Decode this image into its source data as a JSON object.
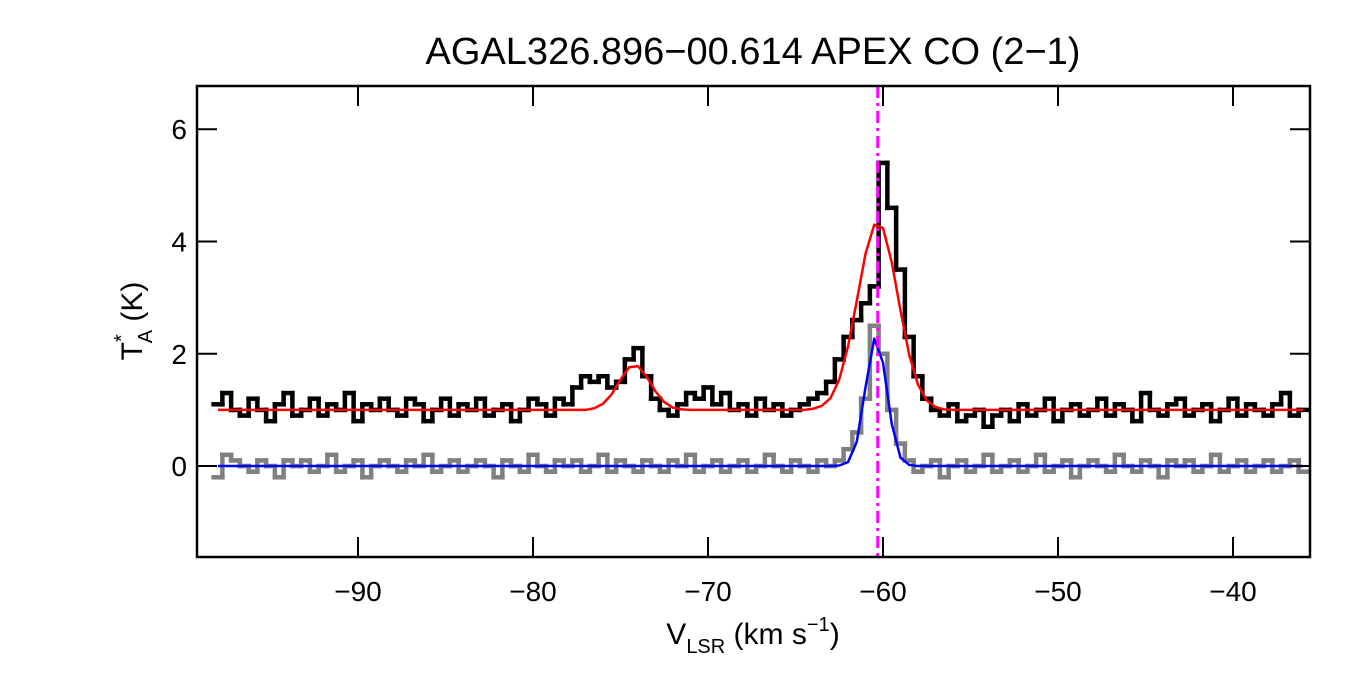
{
  "chart_data": {
    "type": "spectrum",
    "title": "AGAL326.896−00.614  APEX CO (2−1)",
    "ylabel": {
      "base": "T",
      "sup": "*",
      "sub": "A",
      "rest": " (K)"
    },
    "xlabel": {
      "base": "V",
      "sub": "LSR",
      "mid": " (km s",
      "sup": "−1",
      "rest": ")"
    },
    "xlim": [
      -99.2,
      -35.6
    ],
    "ylim": [
      -1.62,
      6.77
    ],
    "xticks": [
      {
        "value": -90,
        "label": "−90"
      },
      {
        "value": -80,
        "label": "−80"
      },
      {
        "value": -70,
        "label": "−70"
      },
      {
        "value": -60,
        "label": "−60"
      },
      {
        "value": -50,
        "label": "−50"
      },
      {
        "value": -40,
        "label": "−40"
      }
    ],
    "yticks": [
      0,
      2,
      4,
      6
    ],
    "vline": {
      "x": -60.3,
      "color": "#ff00ff"
    },
    "x": [
      -98,
      -97.5,
      -97,
      -96.5,
      -96,
      -95.5,
      -95,
      -94.5,
      -94,
      -93.5,
      -93,
      -92.5,
      -92,
      -91.5,
      -91,
      -90.5,
      -90,
      -89.5,
      -89,
      -88.5,
      -88,
      -87.5,
      -87,
      -86.5,
      -86,
      -85.5,
      -85,
      -84.5,
      -84,
      -83.5,
      -83,
      -82.5,
      -82,
      -81.5,
      -81,
      -80.5,
      -80,
      -79.5,
      -79,
      -78.5,
      -78,
      -77.5,
      -77,
      -76.5,
      -76,
      -75.5,
      -75,
      -74.5,
      -74,
      -73.5,
      -73,
      -72.5,
      -72,
      -71.5,
      -71,
      -70.5,
      -70,
      -69.5,
      -69,
      -68.5,
      -68,
      -67.5,
      -67,
      -66.5,
      -66,
      -65.5,
      -65,
      -64.5,
      -64,
      -63.5,
      -63,
      -62.5,
      -62,
      -61.5,
      -61,
      -60.5,
      -60,
      -59.5,
      -59,
      -58.5,
      -58,
      -57.5,
      -57,
      -56.5,
      -56,
      -55.5,
      -55,
      -54.5,
      -54,
      -53.5,
      -53,
      -52.5,
      -52,
      -51.5,
      -51,
      -50.5,
      -50,
      -49.5,
      -49,
      -48.5,
      -48,
      -47.5,
      -47,
      -46.5,
      -46,
      -45.5,
      -45,
      -44.5,
      -44,
      -43.5,
      -43,
      -42.5,
      -42,
      -41.5,
      -41,
      -40.5,
      -40,
      -39.5,
      -39,
      -38.5,
      -38,
      -37.5,
      -37,
      -36.5,
      -36
    ],
    "series": [
      {
        "color": "#808080",
        "style": "step",
        "values": [
          -0.2,
          0.2,
          0.1,
          0.0,
          -0.1,
          0.1,
          0.0,
          -0.2,
          0.1,
          0.0,
          0.1,
          -0.1,
          0.0,
          0.2,
          -0.1,
          0.0,
          0.1,
          -0.2,
          0.0,
          0.1,
          0.0,
          -0.1,
          0.1,
          0.0,
          0.2,
          -0.1,
          0.0,
          0.1,
          -0.1,
          0.0,
          0.1,
          0.0,
          -0.2,
          0.1,
          0.0,
          -0.1,
          0.2,
          0.0,
          -0.1,
          0.1,
          0.0,
          0.1,
          -0.1,
          0.0,
          0.2,
          -0.1,
          0.1,
          0.0,
          -0.1,
          0.1,
          0.0,
          -0.1,
          0.1,
          0.0,
          0.2,
          -0.1,
          0.0,
          0.1,
          -0.1,
          0.0,
          0.1,
          -0.1,
          0.0,
          0.2,
          0.0,
          -0.1,
          0.1,
          0.0,
          -0.1,
          0.1,
          0.0,
          0.1,
          0.3,
          0.6,
          1.2,
          2.5,
          2.0,
          1.0,
          0.4,
          0.1,
          -0.1,
          0.0,
          0.1,
          -0.2,
          0.0,
          0.1,
          -0.1,
          0.0,
          0.2,
          -0.1,
          0.0,
          0.1,
          -0.1,
          0.0,
          0.2,
          -0.1,
          0.0,
          0.1,
          -0.2,
          0.0,
          0.1,
          0.0,
          -0.1,
          0.2,
          0.0,
          -0.1,
          0.1,
          0.0,
          -0.2,
          0.1,
          0.0,
          0.1,
          -0.1,
          0.0,
          0.2,
          -0.1,
          0.0,
          0.1,
          -0.1,
          0.0,
          0.1,
          -0.1,
          0.0,
          0.1,
          -0.1
        ]
      },
      {
        "color": "#000000",
        "style": "step",
        "values": [
          1.1,
          1.3,
          1.0,
          0.9,
          1.2,
          1.0,
          0.8,
          1.1,
          1.3,
          0.9,
          1.0,
          1.2,
          0.9,
          1.1,
          1.0,
          1.3,
          0.8,
          1.1,
          1.0,
          1.2,
          1.0,
          0.9,
          1.2,
          1.1,
          0.8,
          1.0,
          1.2,
          0.9,
          1.1,
          1.0,
          1.2,
          0.9,
          1.0,
          1.1,
          0.8,
          1.0,
          1.2,
          1.1,
          0.9,
          1.2,
          1.1,
          1.4,
          1.6,
          1.5,
          1.6,
          1.4,
          1.5,
          1.9,
          2.1,
          1.6,
          1.2,
          1.0,
          0.9,
          1.1,
          1.3,
          1.2,
          1.4,
          1.1,
          1.3,
          1.0,
          1.1,
          0.9,
          1.2,
          1.0,
          1.1,
          0.9,
          1.0,
          1.1,
          1.2,
          1.3,
          1.5,
          1.9,
          2.3,
          2.6,
          2.9,
          3.2,
          5.4,
          4.6,
          3.5,
          2.3,
          1.6,
          1.2,
          1.0,
          0.9,
          1.1,
          0.8,
          0.9,
          1.0,
          0.7,
          0.9,
          1.0,
          0.8,
          1.1,
          0.9,
          1.0,
          1.2,
          0.8,
          1.0,
          1.1,
          0.9,
          1.0,
          1.2,
          0.9,
          1.1,
          1.0,
          0.8,
          1.3,
          1.0,
          0.9,
          1.1,
          1.2,
          0.9,
          1.0,
          1.1,
          0.8,
          1.0,
          1.2,
          0.9,
          1.1,
          1.0,
          0.9,
          1.1,
          1.3,
          0.9,
          1.0
        ]
      },
      {
        "color": "#ff0000",
        "style": "line",
        "values": [
          1.0,
          1.0,
          1.0,
          1.0,
          1.0,
          1.0,
          1.0,
          1.0,
          1.0,
          1.0,
          1.0,
          1.0,
          1.0,
          1.0,
          1.0,
          1.0,
          1.0,
          1.0,
          1.0,
          1.0,
          1.0,
          1.0,
          1.0,
          1.0,
          1.0,
          1.0,
          1.0,
          1.0,
          1.0,
          1.0,
          1.0,
          1.0,
          1.0,
          1.0,
          1.0,
          1.0,
          1.0,
          1.0,
          1.0,
          1.0,
          1.0,
          1.0,
          1.0,
          1.03,
          1.11,
          1.28,
          1.54,
          1.76,
          1.78,
          1.59,
          1.33,
          1.14,
          1.04,
          1.01,
          1.0,
          1.0,
          1.0,
          1.0,
          1.0,
          1.0,
          1.0,
          1.0,
          1.0,
          1.0,
          1.0,
          1.0,
          1.0,
          1.0,
          1.02,
          1.07,
          1.21,
          1.54,
          2.13,
          2.94,
          3.78,
          4.3,
          4.24,
          3.63,
          2.77,
          1.98,
          1.45,
          1.17,
          1.05,
          1.01,
          1.0,
          1.0,
          1.0,
          1.0,
          1.0,
          1.0,
          1.0,
          1.0,
          1.0,
          1.0,
          1.0,
          1.0,
          1.0,
          1.0,
          1.0,
          1.0,
          1.0,
          1.0,
          1.0,
          1.0,
          1.0,
          1.0,
          1.0,
          1.0,
          1.0,
          1.0,
          1.0,
          1.0,
          1.0,
          1.0,
          1.0,
          1.0,
          1.0,
          1.0,
          1.0,
          1.0,
          1.0,
          1.0,
          1.0,
          1.0,
          1.0
        ]
      },
      {
        "color": "#0000ff",
        "style": "line",
        "values": [
          0,
          0,
          0,
          0,
          0,
          0,
          0,
          0,
          0,
          0,
          0,
          0,
          0,
          0,
          0,
          0,
          0,
          0,
          0,
          0,
          0,
          0,
          0,
          0,
          0,
          0,
          0,
          0,
          0,
          0,
          0,
          0,
          0,
          0,
          0,
          0,
          0,
          0,
          0,
          0,
          0,
          0,
          0,
          0,
          0,
          0,
          0,
          0,
          0,
          0,
          0,
          0,
          0,
          0,
          0,
          0,
          0,
          0,
          0,
          0,
          0,
          0,
          0,
          0,
          0,
          0,
          0,
          0,
          0,
          0,
          0,
          0.01,
          0.07,
          0.43,
          1.4,
          2.27,
          1.84,
          0.75,
          0.15,
          0.02,
          0,
          0,
          0,
          0,
          0,
          0,
          0,
          0,
          0,
          0,
          0,
          0,
          0,
          0,
          0,
          0,
          0,
          0,
          0,
          0,
          0,
          0,
          0,
          0,
          0,
          0,
          0,
          0,
          0,
          0,
          0,
          0,
          0,
          0,
          0,
          0,
          0,
          0,
          0,
          0,
          0,
          0,
          0,
          0,
          0
        ]
      }
    ]
  }
}
